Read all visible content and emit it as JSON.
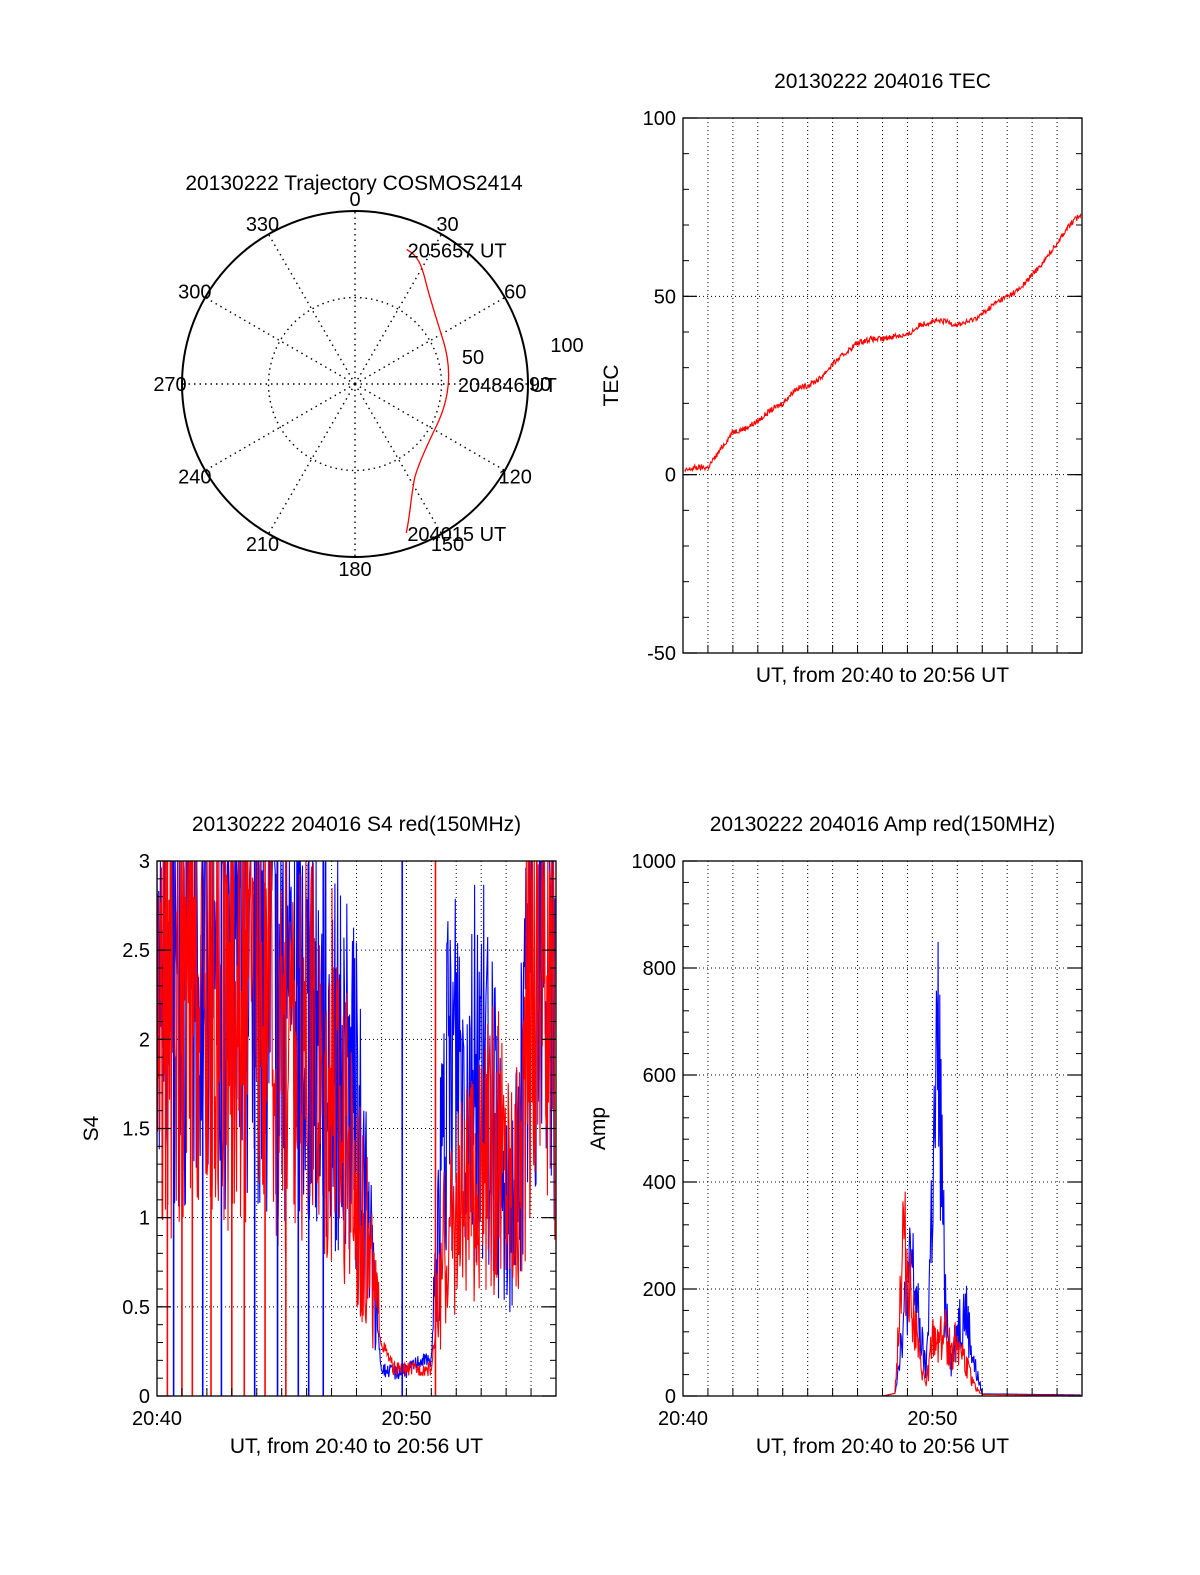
{
  "colors": {
    "red": "#ff0000",
    "blue": "#0000ff",
    "axis": "#000000",
    "grid": "#000000"
  },
  "chart_data": [
    {
      "id": "trajectory",
      "type": "polar",
      "title": "20130222 Trajectory COSMOS2414",
      "azimuth_labels": [
        "0",
        "30",
        "60",
        "90",
        "120",
        "150",
        "180",
        "210",
        "240",
        "270",
        "300",
        "330"
      ],
      "radial_labels": [
        "50",
        "100"
      ],
      "rlim": [
        0,
        100
      ],
      "grid": true,
      "track": {
        "color": "red",
        "points": [
          [
            161,
            8
          ],
          [
            158,
            15
          ],
          [
            153,
            25
          ],
          [
            144,
            36
          ],
          [
            90,
            37
          ],
          [
            40,
            30
          ],
          [
            30,
            20
          ],
          [
            25,
            16
          ],
          [
            21,
            15
          ]
        ]
      },
      "annotations": [
        {
          "text": "205657 UT",
          "az": 21,
          "el": 15
        },
        {
          "text": "204846 UT",
          "az": 90,
          "el": 37
        },
        {
          "text": "204015 UT",
          "az": 161,
          "el": 8
        }
      ]
    },
    {
      "id": "tec",
      "type": "line",
      "title": "20130222 204016 TEC",
      "xlabel": "UT, from 20:40 to 20:56 UT",
      "ylabel": "TEC",
      "xlim": [
        "20:40",
        "20:56"
      ],
      "ylim": [
        -50,
        100
      ],
      "yticks": [
        "-50",
        "0",
        "50",
        "100"
      ],
      "grid": true,
      "series": [
        {
          "color": "red",
          "x": [
            "20:40:04",
            "20:40:30",
            "20:41:00",
            "20:41:30",
            "20:42:00",
            "20:42:30",
            "20:43:00",
            "20:43:30",
            "20:44:00",
            "20:44:30",
            "20:45:00",
            "20:45:30",
            "20:46:00",
            "20:46:30",
            "20:47:00",
            "20:47:30",
            "20:48:00",
            "20:48:30",
            "20:49:00",
            "20:49:30",
            "20:50:00",
            "20:50:30",
            "20:51:00",
            "20:51:30",
            "20:52:00",
            "20:52:30",
            "20:53:00",
            "20:53:30",
            "20:54:00",
            "20:54:30",
            "20:55:00",
            "20:55:30",
            "20:55:57"
          ],
          "y": [
            1,
            2,
            2,
            7,
            12,
            13,
            15,
            18,
            20,
            24,
            25,
            27,
            31,
            34,
            37,
            38,
            38,
            39,
            39,
            42,
            43,
            43,
            42,
            43,
            45,
            48,
            50,
            52,
            56,
            60,
            65,
            70,
            73
          ]
        }
      ]
    },
    {
      "id": "s4",
      "type": "line",
      "title": "20130222 204016 S4 red(150MHz)",
      "xlabel": "UT, from 20:40 to 20:56 UT",
      "ylabel": "S4",
      "xlim": [
        "20:40",
        "20:56"
      ],
      "ylim": [
        0,
        3
      ],
      "xticks": [
        "20:40",
        "20:50"
      ],
      "yticks": [
        "0",
        "0.5",
        "1",
        "1.5",
        "2",
        "2.5",
        "3"
      ],
      "grid": true,
      "series": [
        {
          "color": "blue",
          "x": [
            "20:40:00",
            "20:42:00",
            "20:44:00",
            "20:45:00",
            "20:46:00",
            "20:47:00",
            "20:47:30",
            "20:48:00",
            "20:48:30",
            "20:49:00",
            "20:49:30",
            "20:50:00",
            "20:50:30",
            "20:51:00",
            "20:51:30",
            "20:52:00",
            "20:52:30",
            "20:53:00",
            "20:53:30",
            "20:54:00",
            "20:54:30",
            "20:55:00",
            "20:55:30",
            "20:55:57"
          ],
          "y": [
            2.6,
            2.5,
            2.5,
            2.3,
            2.2,
            2.0,
            1.8,
            1.6,
            0.9,
            0.15,
            0.13,
            0.14,
            0.2,
            0.2,
            1.5,
            2.0,
            1.8,
            1.9,
            1.5,
            1.0,
            1.3,
            2.5,
            2.8,
            2.2
          ]
        },
        {
          "color": "red",
          "x": [
            "20:40:00",
            "20:42:00",
            "20:44:00",
            "20:45:00",
            "20:46:00",
            "20:47:00",
            "20:47:30",
            "20:48:00",
            "20:48:30",
            "20:49:00",
            "20:49:30",
            "20:50:00",
            "20:50:30",
            "20:51:00",
            "20:51:30",
            "20:52:00",
            "20:52:30",
            "20:53:00",
            "20:53:30",
            "20:54:00",
            "20:54:30",
            "20:55:00",
            "20:55:30",
            "20:55:57"
          ],
          "y": [
            2.1,
            2.3,
            2.2,
            2.0,
            1.9,
            1.8,
            1.5,
            1.2,
            0.8,
            0.3,
            0.15,
            0.15,
            0.15,
            0.15,
            0.8,
            1.0,
            1.1,
            1.2,
            1.4,
            1.3,
            1.2,
            2.5,
            2.6,
            2.0
          ]
        }
      ]
    },
    {
      "id": "amp",
      "type": "line",
      "title": "20130222 204016 Amp red(150MHz)",
      "xlabel": "UT, from 20:40 to 20:56 UT",
      "ylabel": "Amp",
      "xlim": [
        "20:40",
        "20:56"
      ],
      "ylim": [
        0,
        1000
      ],
      "xticks": [
        "20:40",
        "20:50"
      ],
      "yticks": [
        "0",
        "200",
        "400",
        "600",
        "800",
        "1000"
      ],
      "grid": true,
      "series": [
        {
          "color": "blue",
          "x": [
            "20:40:00",
            "20:48:00",
            "20:48:30",
            "20:48:50",
            "20:49:10",
            "20:49:30",
            "20:49:45",
            "20:50:00",
            "20:50:15",
            "20:50:30",
            "20:50:45",
            "20:51:00",
            "20:51:20",
            "20:51:40",
            "20:52:00",
            "20:55:57"
          ],
          "y": [
            0,
            0,
            5,
            140,
            250,
            120,
            40,
            380,
            640,
            200,
            60,
            130,
            160,
            60,
            4,
            2
          ]
        },
        {
          "color": "red",
          "x": [
            "20:40:00",
            "20:48:00",
            "20:48:30",
            "20:48:50",
            "20:49:10",
            "20:49:30",
            "20:49:45",
            "20:50:00",
            "20:50:15",
            "20:50:30",
            "20:50:45",
            "20:51:00",
            "20:51:20",
            "20:51:40",
            "20:52:00",
            "20:55:57"
          ],
          "y": [
            0,
            0,
            5,
            300,
            180,
            60,
            20,
            100,
            110,
            120,
            80,
            110,
            60,
            20,
            3,
            1
          ]
        }
      ]
    }
  ]
}
